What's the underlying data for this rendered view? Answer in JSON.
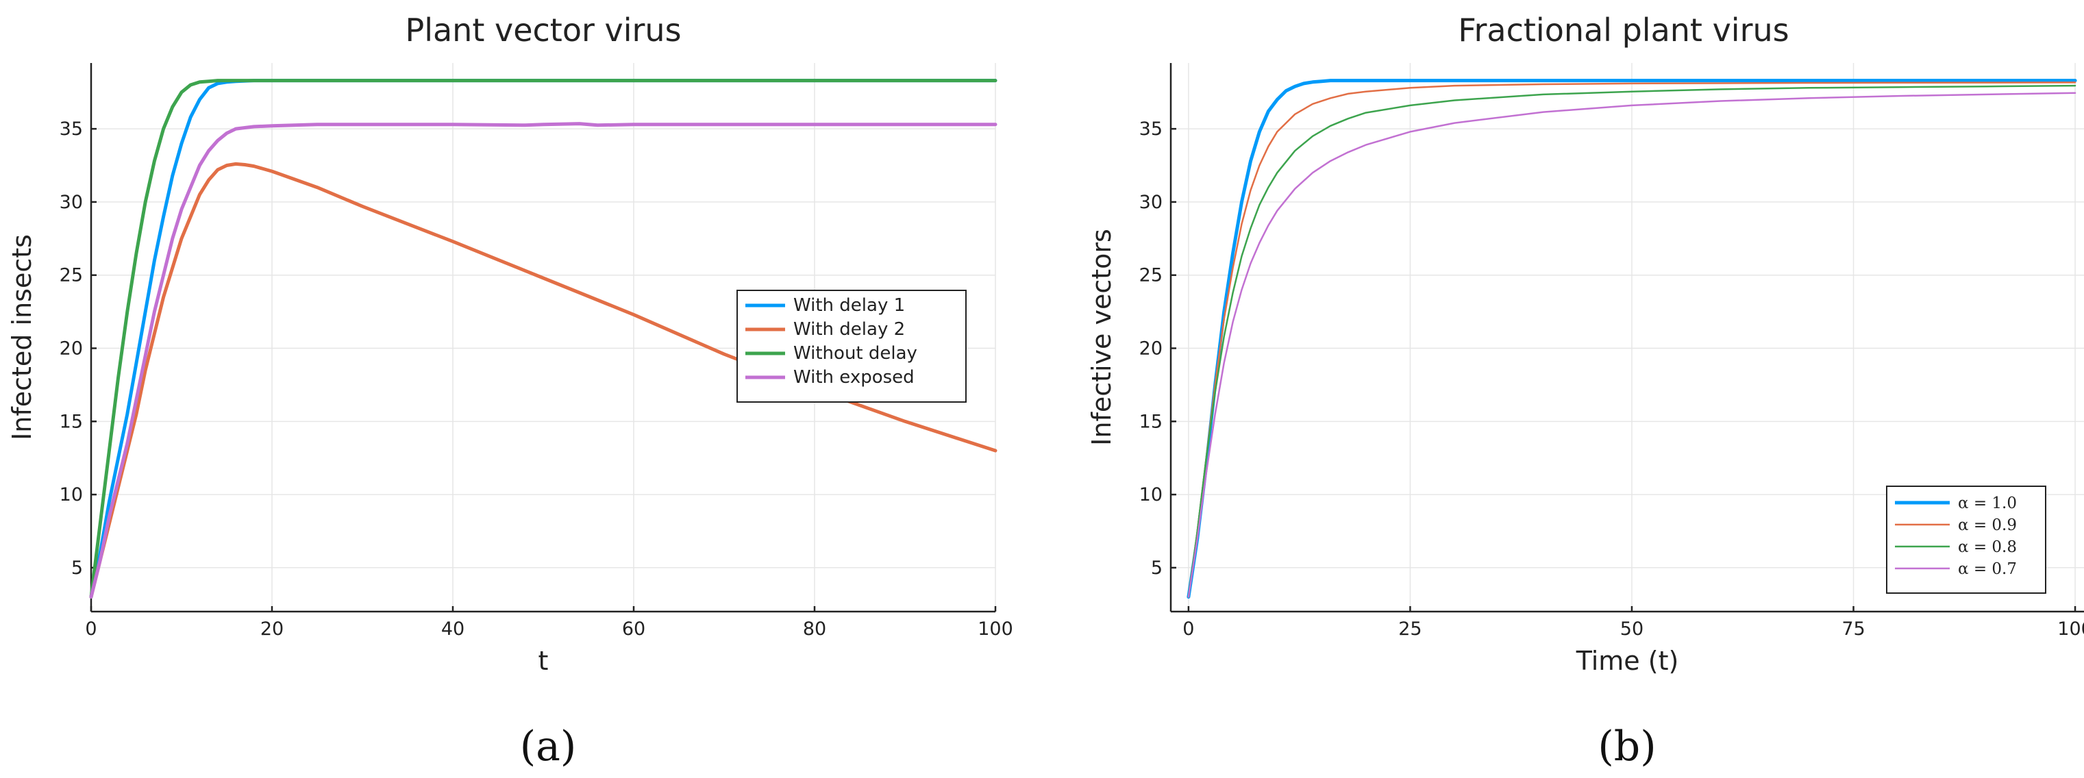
{
  "panel_labels": [
    "(a)",
    "(b)"
  ],
  "chart_data": [
    {
      "type": "line",
      "title": "Plant vector virus",
      "xlabel": "t",
      "ylabel": "Infected insects",
      "xlim": [
        0,
        100
      ],
      "ylim": [
        2,
        39.5
      ],
      "xticks": [
        0,
        20,
        40,
        60,
        80,
        100
      ],
      "yticks": [
        5,
        10,
        15,
        20,
        25,
        30,
        35
      ],
      "grid": true,
      "legend_position": "right-middle",
      "series": [
        {
          "name": "With delay 1",
          "color": "#009AF9",
          "width": 5,
          "x": [
            0,
            1,
            2,
            3,
            4,
            5,
            6,
            7,
            8,
            9,
            10,
            11,
            12,
            13,
            14,
            15,
            16,
            18,
            20,
            30,
            40,
            60,
            80,
            100
          ],
          "y": [
            3.0,
            6.0,
            9.5,
            12.5,
            15.5,
            19.0,
            22.5,
            26.0,
            29.0,
            31.8,
            34.0,
            35.8,
            37.0,
            37.8,
            38.1,
            38.2,
            38.25,
            38.3,
            38.3,
            38.3,
            38.3,
            38.3,
            38.3,
            38.3
          ]
        },
        {
          "name": "With delay 2",
          "color": "#E26F46",
          "width": 5,
          "x": [
            0,
            1,
            2,
            3,
            4,
            5,
            6,
            7,
            8,
            9,
            10,
            11,
            12,
            13,
            14,
            15,
            16,
            17,
            18,
            20,
            25,
            30,
            40,
            50,
            60,
            70,
            80,
            90,
            100
          ],
          "y": [
            3.0,
            5.5,
            8.0,
            10.5,
            13.0,
            15.5,
            18.5,
            21.0,
            23.5,
            25.5,
            27.5,
            29.0,
            30.5,
            31.5,
            32.2,
            32.5,
            32.6,
            32.55,
            32.45,
            32.1,
            31.0,
            29.7,
            27.3,
            24.8,
            22.3,
            19.6,
            17.2,
            15.0,
            13.0
          ]
        },
        {
          "name": "Without delay",
          "color": "#3DA44E",
          "width": 5,
          "x": [
            0,
            1,
            2,
            3,
            4,
            5,
            6,
            7,
            8,
            9,
            10,
            11,
            12,
            13,
            14,
            15,
            16,
            20,
            30,
            40,
            50,
            60,
            70,
            80,
            90,
            100
          ],
          "y": [
            3.0,
            8.0,
            13.0,
            18.0,
            22.5,
            26.5,
            30.0,
            32.8,
            35.0,
            36.5,
            37.5,
            38.0,
            38.2,
            38.25,
            38.3,
            38.3,
            38.3,
            38.3,
            38.3,
            38.3,
            38.3,
            38.3,
            38.3,
            38.3,
            38.3,
            38.3
          ]
        },
        {
          "name": "With exposed",
          "color": "#C271D2",
          "width": 5,
          "x": [
            0,
            1,
            2,
            3,
            4,
            5,
            6,
            7,
            8,
            9,
            10,
            11,
            12,
            13,
            14,
            15,
            16,
            18,
            20,
            25,
            30,
            40,
            48,
            50,
            54,
            56,
            60,
            70,
            80,
            90,
            100
          ],
          "y": [
            3.0,
            5.5,
            8.5,
            11.0,
            13.5,
            16.5,
            19.5,
            22.5,
            25.0,
            27.5,
            29.5,
            31.0,
            32.5,
            33.5,
            34.2,
            34.7,
            35.0,
            35.15,
            35.2,
            35.3,
            35.3,
            35.3,
            35.25,
            35.3,
            35.35,
            35.25,
            35.3,
            35.3,
            35.3,
            35.3,
            35.3
          ]
        }
      ]
    },
    {
      "type": "line",
      "title": "Fractional plant virus",
      "xlabel": "Time (t)",
      "ylabel": "Infective vectors",
      "xlim": [
        -2,
        101
      ],
      "ylim": [
        2,
        39.5
      ],
      "xticks": [
        0,
        25,
        50,
        75,
        100
      ],
      "yticks": [
        5,
        10,
        15,
        20,
        25,
        30,
        35
      ],
      "grid": true,
      "legend_position": "bottom-right",
      "series": [
        {
          "name": "α = 1.0",
          "color": "#009AF9",
          "width": 5,
          "x": [
            0,
            1,
            2,
            3,
            4,
            5,
            6,
            7,
            8,
            9,
            10,
            11,
            12,
            13,
            14,
            15,
            16,
            18,
            20,
            25,
            30,
            40,
            50,
            60,
            70,
            80,
            90,
            100
          ],
          "y": [
            3.0,
            7.0,
            12.0,
            17.5,
            22.5,
            26.5,
            30.0,
            32.8,
            34.8,
            36.2,
            37.0,
            37.6,
            37.9,
            38.1,
            38.2,
            38.25,
            38.3,
            38.3,
            38.3,
            38.3,
            38.3,
            38.3,
            38.3,
            38.3,
            38.3,
            38.3,
            38.3,
            38.3
          ]
        },
        {
          "name": "α = 0.9",
          "color": "#E26F46",
          "width": 2.5,
          "x": [
            0,
            1,
            2,
            3,
            4,
            5,
            6,
            7,
            8,
            9,
            10,
            12,
            14,
            16,
            18,
            20,
            25,
            30,
            40,
            50,
            60,
            70,
            80,
            90,
            100
          ],
          "y": [
            3.0,
            7.5,
            12.5,
            17.5,
            22.0,
            25.5,
            28.5,
            30.8,
            32.5,
            33.8,
            34.8,
            36.0,
            36.7,
            37.1,
            37.4,
            37.55,
            37.8,
            37.95,
            38.05,
            38.1,
            38.12,
            38.14,
            38.15,
            38.16,
            38.17
          ]
        },
        {
          "name": "α = 0.8",
          "color": "#3DA44E",
          "width": 2.5,
          "x": [
            0,
            1,
            2,
            3,
            4,
            5,
            6,
            7,
            8,
            9,
            10,
            12,
            14,
            16,
            18,
            20,
            25,
            30,
            40,
            50,
            60,
            70,
            80,
            90,
            100
          ],
          "y": [
            3.0,
            7.5,
            12.5,
            17.0,
            20.8,
            23.8,
            26.3,
            28.2,
            29.8,
            31.0,
            32.0,
            33.5,
            34.5,
            35.2,
            35.7,
            36.1,
            36.6,
            36.95,
            37.35,
            37.55,
            37.7,
            37.8,
            37.85,
            37.9,
            37.95
          ]
        },
        {
          "name": "α = 0.7",
          "color": "#C271D2",
          "width": 2.5,
          "x": [
            0,
            1,
            2,
            3,
            4,
            5,
            6,
            7,
            8,
            9,
            10,
            12,
            14,
            16,
            18,
            20,
            25,
            30,
            40,
            50,
            60,
            70,
            80,
            90,
            100
          ],
          "y": [
            3.0,
            7.0,
            11.5,
            15.5,
            19.0,
            21.8,
            24.0,
            25.8,
            27.2,
            28.4,
            29.4,
            30.9,
            32.0,
            32.8,
            33.4,
            33.9,
            34.8,
            35.4,
            36.15,
            36.6,
            36.9,
            37.1,
            37.25,
            37.35,
            37.45
          ]
        }
      ]
    }
  ]
}
